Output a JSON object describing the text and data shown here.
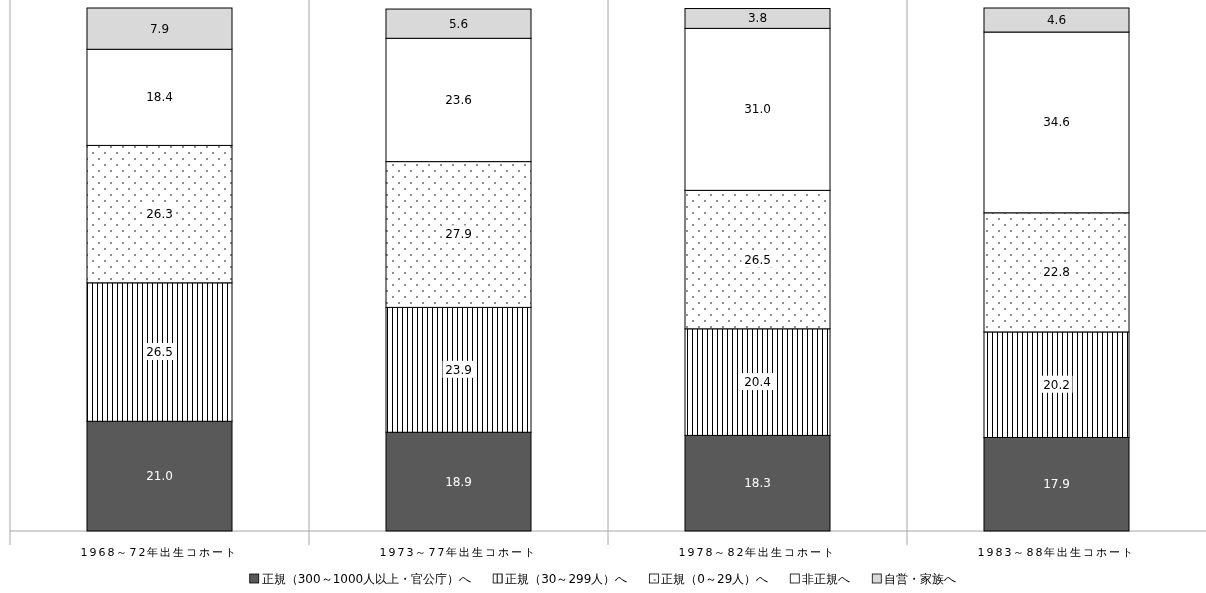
{
  "chart_data": {
    "type": "bar",
    "stacked": true,
    "legend": "bottom",
    "categories": [
      "1968～72年出生コホート",
      "1973～77年出生コホート",
      "1978～82年出生コホート",
      "1983～88年出生コホート"
    ],
    "series": [
      {
        "name": "正規（300～1000人以上・官公庁）へ",
        "color": "#595959",
        "values": [
          21.0,
          18.9,
          18.3,
          17.9
        ],
        "value_labels": [
          "21.0",
          "18.9",
          "18.3",
          "17.9"
        ]
      },
      {
        "name": "正規（30～299人）へ",
        "color": "#000000",
        "values": [
          26.5,
          23.9,
          20.4,
          20.2
        ],
        "value_labels": [
          "26.5",
          "23.9",
          "20.4",
          "20.2"
        ]
      },
      {
        "name": "正規（0～29人）へ",
        "color": "#000000",
        "values": [
          26.3,
          27.9,
          26.5,
          22.8
        ],
        "value_labels": [
          "26.3",
          "27.9",
          "26.5",
          "22.8"
        ]
      },
      {
        "name": "非正規へ",
        "color": "#ffffff",
        "values": [
          18.4,
          23.6,
          31.0,
          34.6
        ],
        "value_labels": [
          "18.4",
          "23.6",
          "31.0",
          "34.6"
        ]
      },
      {
        "name": "自営・家族へ",
        "color": "#d9d9d9",
        "values": [
          7.9,
          5.6,
          3.8,
          4.6
        ],
        "value_labels": [
          "7.9",
          "5.6",
          "3.8",
          "4.6"
        ]
      }
    ]
  }
}
